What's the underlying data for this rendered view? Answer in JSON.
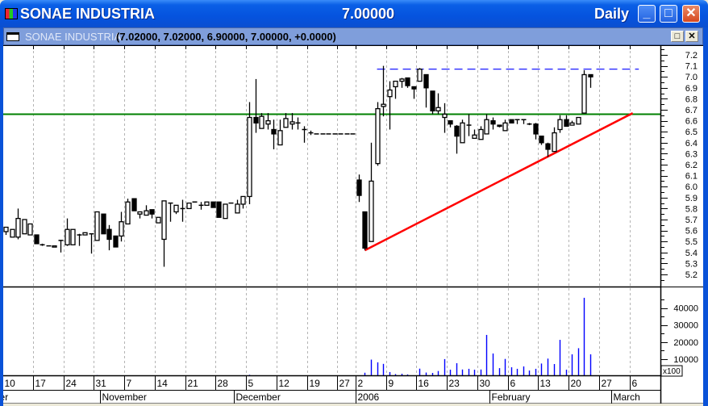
{
  "window": {
    "title": "SONAE INDUSTRIA",
    "last_price": "7.00000",
    "period": "Daily",
    "minimize_label": "_",
    "maximize_label": "□",
    "close_label": "✕"
  },
  "child_window": {
    "symbol": "SONAE INDUSTRIA",
    "ohlc_summary": "(7.02000, 7.02000, 6.90000, 7.00000, +0.0000)",
    "restore_label": "□",
    "close_label": "✕"
  },
  "chart_data": {
    "type": "candlestick",
    "title": "SONAE INDUSTRIA",
    "grid": true,
    "price_axis": {
      "position": "right",
      "range": [
        5.15,
        7.25
      ],
      "ticks": [
        "7.2",
        "7.1",
        "7.0",
        "6.9",
        "6.8",
        "6.7",
        "6.6",
        "6.5",
        "6.4",
        "6.3",
        "6.2",
        "6.1",
        "6.0",
        "5.9",
        "5.8",
        "5.7",
        "5.6",
        "5.5",
        "5.4",
        "5.3",
        "5.2"
      ]
    },
    "volume_axis": {
      "position": "right",
      "ticks": [
        "40000",
        "30000",
        "20000",
        "10000"
      ],
      "multiplier_label": "x100"
    },
    "colors": {
      "up_body": "#ffffff",
      "down_body": "#000000",
      "volume": "#0000ff",
      "grid": "#b4b4b4",
      "support": "#008000",
      "trendline": "#ff0000",
      "resistance": "#0000ff"
    },
    "columns": [
      "date",
      "open",
      "high",
      "low",
      "close",
      "volume"
    ],
    "candles": [
      [
        "2005-10-10",
        5.59,
        5.63,
        5.56,
        5.63,
        0
      ],
      [
        "2005-10-11",
        5.54,
        5.61,
        5.54,
        5.61,
        0
      ],
      [
        "2005-10-12",
        5.54,
        5.8,
        5.52,
        5.71,
        0
      ],
      [
        "2005-10-13",
        5.57,
        5.7,
        5.57,
        5.7,
        0
      ],
      [
        "2005-10-14",
        5.56,
        5.66,
        5.56,
        5.66,
        0
      ],
      [
        "2005-10-17",
        5.56,
        5.56,
        5.48,
        5.48,
        0
      ],
      [
        "2005-10-18",
        5.47,
        5.48,
        5.46,
        5.47,
        0
      ],
      [
        "2005-10-19",
        5.46,
        5.46,
        5.46,
        5.46,
        0
      ],
      [
        "2005-10-20",
        5.45,
        5.46,
        5.45,
        5.46,
        0
      ],
      [
        "2005-10-21",
        5.51,
        5.51,
        5.4,
        5.51,
        0
      ],
      [
        "2005-10-24",
        5.47,
        5.71,
        5.46,
        5.61,
        0
      ],
      [
        "2005-10-25",
        5.47,
        5.61,
        5.47,
        5.61,
        0
      ],
      [
        "2005-10-26",
        5.56,
        5.57,
        5.46,
        5.56,
        0
      ],
      [
        "2005-10-27",
        5.56,
        5.58,
        5.56,
        5.58,
        0
      ],
      [
        "2005-10-28",
        5.57,
        5.57,
        5.39,
        5.57,
        0
      ],
      [
        "2005-10-31",
        5.51,
        5.77,
        5.51,
        5.77,
        600
      ],
      [
        "2005-11-01",
        5.75,
        5.75,
        5.57,
        5.57,
        0
      ],
      [
        "2005-11-02",
        5.61,
        5.65,
        5.42,
        5.52,
        0
      ],
      [
        "2005-11-03",
        5.55,
        5.55,
        5.45,
        5.45,
        0
      ],
      [
        "2005-11-04",
        5.55,
        5.77,
        5.5,
        5.68,
        0
      ],
      [
        "2005-11-07",
        5.66,
        5.89,
        5.66,
        5.86,
        0
      ],
      [
        "2005-11-08",
        5.89,
        5.89,
        5.78,
        5.78,
        0
      ],
      [
        "2005-11-09",
        5.75,
        5.77,
        5.71,
        5.77,
        0
      ],
      [
        "2005-11-10",
        5.74,
        5.83,
        5.74,
        5.78,
        0
      ],
      [
        "2005-11-11",
        5.79,
        5.79,
        5.71,
        5.75,
        0
      ],
      [
        "2005-11-14",
        5.67,
        5.72,
        5.67,
        5.72,
        0
      ],
      [
        "2005-11-15",
        5.52,
        5.87,
        5.27,
        5.87,
        0
      ],
      [
        "2005-11-16",
        5.85,
        5.85,
        5.68,
        5.85,
        0
      ],
      [
        "2005-11-17",
        5.77,
        5.83,
        5.75,
        5.83,
        0
      ],
      [
        "2005-11-18",
        5.8,
        5.88,
        5.68,
        5.8,
        0
      ],
      [
        "2005-11-21",
        5.8,
        5.85,
        5.8,
        5.85,
        0
      ],
      [
        "2005-11-22",
        5.86,
        5.86,
        5.86,
        5.86,
        0
      ],
      [
        "2005-11-23",
        5.83,
        5.86,
        5.79,
        5.83,
        0
      ],
      [
        "2005-11-24",
        5.83,
        5.86,
        5.83,
        5.86,
        0
      ],
      [
        "2005-11-25",
        5.86,
        5.86,
        5.81,
        5.81,
        0
      ],
      [
        "2005-11-28",
        5.86,
        5.86,
        5.72,
        5.72,
        0
      ],
      [
        "2005-11-29",
        5.71,
        5.84,
        5.71,
        5.84,
        0
      ],
      [
        "2005-11-30",
        5.85,
        5.85,
        5.85,
        5.85,
        0
      ],
      [
        "2005-12-01",
        5.76,
        5.88,
        5.76,
        5.84,
        0
      ],
      [
        "2005-12-02",
        5.84,
        5.91,
        5.8,
        5.91,
        0
      ],
      [
        "2005-12-05",
        5.91,
        6.77,
        5.84,
        6.63,
        800
      ],
      [
        "2005-12-06",
        6.63,
        6.98,
        6.49,
        6.58,
        500
      ],
      [
        "2005-12-07",
        6.53,
        6.67,
        6.53,
        6.64,
        0
      ],
      [
        "2005-12-08",
        6.57,
        6.67,
        6.52,
        6.6,
        0
      ],
      [
        "2005-12-09",
        6.52,
        6.61,
        6.34,
        6.48,
        0
      ],
      [
        "2005-12-12",
        6.38,
        6.61,
        6.38,
        6.51,
        0
      ],
      [
        "2005-12-13",
        6.54,
        6.67,
        6.54,
        6.62,
        0
      ],
      [
        "2005-12-14",
        6.57,
        6.67,
        6.52,
        6.59,
        0
      ],
      [
        "2005-12-15",
        6.58,
        6.63,
        6.52,
        6.58,
        0
      ],
      [
        "2005-12-16",
        6.52,
        6.55,
        6.4,
        6.52,
        0
      ],
      [
        "2005-12-19",
        6.49,
        6.51,
        6.47,
        6.49,
        0
      ],
      [
        "2005-12-20",
        6.48,
        6.48,
        6.48,
        6.48,
        0
      ],
      [
        "2005-12-21",
        6.48,
        6.48,
        6.48,
        6.48,
        0
      ],
      [
        "2005-12-22",
        6.48,
        6.48,
        6.48,
        6.48,
        0
      ],
      [
        "2005-12-23",
        6.48,
        6.48,
        6.48,
        6.48,
        0
      ],
      [
        "2005-12-27",
        6.48,
        6.48,
        6.48,
        6.48,
        0
      ],
      [
        "2005-12-28",
        6.48,
        6.48,
        6.48,
        6.48,
        0
      ],
      [
        "2005-12-29",
        6.48,
        6.48,
        6.48,
        6.48,
        0
      ],
      [
        "2006-01-02",
        6.06,
        6.11,
        5.86,
        5.92,
        100
      ],
      [
        "2006-01-03",
        5.77,
        5.77,
        5.42,
        5.44,
        2000
      ],
      [
        "2006-01-04",
        5.5,
        6.4,
        5.5,
        6.05,
        9700
      ],
      [
        "2006-01-05",
        6.21,
        6.77,
        6.19,
        6.71,
        8100
      ],
      [
        "2006-01-06",
        6.73,
        7.1,
        6.64,
        6.75,
        7200
      ],
      [
        "2006-01-09",
        6.82,
        6.96,
        6.52,
        6.88,
        2400
      ],
      [
        "2006-01-10",
        6.91,
        6.96,
        6.8,
        6.96,
        1200
      ],
      [
        "2006-01-11",
        6.96,
        6.99,
        6.9,
        6.98,
        1400
      ],
      [
        "2006-01-12",
        6.99,
        6.99,
        6.9,
        6.92,
        1000
      ],
      [
        "2006-01-13",
        6.91,
        6.91,
        6.8,
        6.89,
        0
      ],
      [
        "2006-01-16",
        6.96,
        7.08,
        6.96,
        7.07,
        4400
      ],
      [
        "2006-01-17",
        7.02,
        7.02,
        6.72,
        6.9,
        2100
      ],
      [
        "2006-01-18",
        6.87,
        6.87,
        6.66,
        6.69,
        1900
      ],
      [
        "2006-01-19",
        6.69,
        6.85,
        6.66,
        6.72,
        3000
      ],
      [
        "2006-01-20",
        6.63,
        6.76,
        6.49,
        6.66,
        10000
      ],
      [
        "2006-01-23",
        6.6,
        6.6,
        6.54,
        6.57,
        3800
      ],
      [
        "2006-01-24",
        6.55,
        6.56,
        6.3,
        6.46,
        7600
      ],
      [
        "2006-01-25",
        6.4,
        6.61,
        6.4,
        6.58,
        3900
      ],
      [
        "2006-01-26",
        6.56,
        6.66,
        6.46,
        6.56,
        4300
      ],
      [
        "2006-01-27",
        6.44,
        6.52,
        6.44,
        6.47,
        3800
      ],
      [
        "2006-01-30",
        6.43,
        6.55,
        6.43,
        6.52,
        3900
      ],
      [
        "2006-01-31",
        6.48,
        6.66,
        6.48,
        6.61,
        24200
      ],
      [
        "2006-02-01",
        6.6,
        6.63,
        6.52,
        6.57,
        13300
      ],
      [
        "2006-02-02",
        6.56,
        6.56,
        6.54,
        6.55,
        4700
      ],
      [
        "2006-02-03",
        6.51,
        6.61,
        6.51,
        6.58,
        10100
      ],
      [
        "2006-02-06",
        6.61,
        6.61,
        6.58,
        6.58,
        5200
      ],
      [
        "2006-02-07",
        6.61,
        6.61,
        6.57,
        6.61,
        4300
      ],
      [
        "2006-02-08",
        6.61,
        6.61,
        6.57,
        6.61,
        5700
      ],
      [
        "2006-02-09",
        6.57,
        6.58,
        6.56,
        6.57,
        3300
      ],
      [
        "2006-02-10",
        6.57,
        6.58,
        6.43,
        6.48,
        4300
      ],
      [
        "2006-02-13",
        6.46,
        6.46,
        6.38,
        6.4,
        7400
      ],
      [
        "2006-02-14",
        6.39,
        6.4,
        6.27,
        6.34,
        10300
      ],
      [
        "2006-02-15",
        6.32,
        6.54,
        6.32,
        6.49,
        7100
      ],
      [
        "2006-02-16",
        6.52,
        6.65,
        6.49,
        6.61,
        21300
      ],
      [
        "2006-02-17",
        6.61,
        6.65,
        6.55,
        6.55,
        3800
      ],
      [
        "2006-02-20",
        6.56,
        6.6,
        6.56,
        6.58,
        12800
      ],
      [
        "2006-02-21",
        6.57,
        6.63,
        6.57,
        6.63,
        16400
      ],
      [
        "2006-02-22",
        6.67,
        7.06,
        6.67,
        7.02,
        46000
      ],
      [
        "2006-02-23",
        7.02,
        7.02,
        6.9,
        7.0,
        12800
      ]
    ],
    "day_ticks": [
      {
        "date": "2005-10-10",
        "label": "10"
      },
      {
        "date": "2005-10-17",
        "label": "17"
      },
      {
        "date": "2005-10-24",
        "label": "24"
      },
      {
        "date": "2005-10-31",
        "label": "31"
      },
      {
        "date": "2005-11-07",
        "label": "7"
      },
      {
        "date": "2005-11-14",
        "label": "14"
      },
      {
        "date": "2005-11-21",
        "label": "21"
      },
      {
        "date": "2005-11-28",
        "label": "28"
      },
      {
        "date": "2005-12-05",
        "label": "5"
      },
      {
        "date": "2005-12-12",
        "label": "12"
      },
      {
        "date": "2005-12-19",
        "label": "19"
      },
      {
        "date": "2005-12-27",
        "label": "27"
      },
      {
        "date": "2006-01-02",
        "label": "2"
      },
      {
        "date": "2006-01-09",
        "label": "9"
      },
      {
        "date": "2006-01-16",
        "label": "16"
      },
      {
        "date": "2006-01-23",
        "label": "23"
      },
      {
        "date": "2006-01-30",
        "label": "30"
      },
      {
        "date": "2006-02-06",
        "label": "6"
      },
      {
        "date": "2006-02-13",
        "label": "13"
      },
      {
        "date": "2006-02-20",
        "label": "20"
      },
      {
        "date": "2006-02-27",
        "label": "27"
      },
      {
        "date": "2006-03-06",
        "label": "6"
      }
    ],
    "month_ticks": [
      {
        "date": "2005-10-03",
        "label": "October"
      },
      {
        "date": "2005-11-01",
        "label": "November"
      },
      {
        "date": "2005-12-01",
        "label": "December"
      },
      {
        "date": "2006-01-02",
        "label": "2006"
      },
      {
        "date": "2006-02-01",
        "label": "February"
      },
      {
        "date": "2006-03-01",
        "label": "March"
      }
    ],
    "annotations": [
      {
        "kind": "horizontal",
        "name": "support",
        "price": 6.66
      },
      {
        "kind": "trendline",
        "name": "rising-trendline",
        "from": {
          "date": "2006-01-03",
          "price": 5.42
        },
        "to": {
          "date": "2006-03-06",
          "price": 6.67
        }
      },
      {
        "kind": "dashed",
        "name": "resistance",
        "from": {
          "date": "2006-01-05",
          "price": 7.07
        },
        "to": {
          "date": "2006-03-07",
          "price": 7.07
        }
      }
    ]
  }
}
